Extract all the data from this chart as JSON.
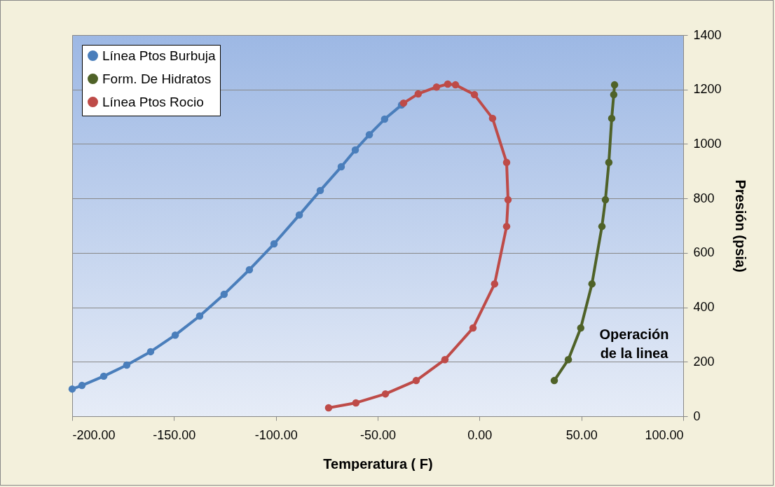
{
  "chart_data": {
    "type": "line",
    "xlabel": "Temperatura ( F)",
    "ylabel": "Presión (psia)",
    "xlim": [
      -200,
      100
    ],
    "xticks": [
      {
        "value": -200,
        "label": "-200.00"
      },
      {
        "value": -150,
        "label": "-150.00"
      },
      {
        "value": -100,
        "label": "-100.00"
      },
      {
        "value": -50,
        "label": "-50.00"
      },
      {
        "value": 0,
        "label": "0.00"
      },
      {
        "value": 50,
        "label": "50.00"
      },
      {
        "value": 100,
        "label": "100.00"
      }
    ],
    "ylim": [
      0,
      1400
    ],
    "yticks": [
      0,
      200,
      400,
      600,
      800,
      1000,
      1200,
      1400
    ],
    "grid": "y",
    "legend": "top left",
    "marker": "circle",
    "series": [
      {
        "name": "Línea Ptos Burbuja",
        "color": "#4a7ebb",
        "x": [
          -200,
          -195.2,
          -184.5,
          -173.2,
          -161.5,
          -149.4,
          -137.4,
          -125.4,
          -113,
          -100.9,
          -88.5,
          -78.2,
          -67.9,
          -61,
          -54.1,
          -46.6,
          -38.3
        ],
        "values": [
          100,
          113,
          147,
          188,
          237,
          298,
          368,
          448,
          538,
          633,
          739,
          829,
          916,
          978,
          1034,
          1091,
          1143
        ]
      },
      {
        "name": "Form. De Hidratos",
        "color": "#4f6228",
        "x": [
          36.7,
          43.6,
          49.7,
          55.2,
          60.1,
          61.8,
          63.5,
          64.9,
          65.9,
          66.3
        ],
        "values": [
          131,
          208,
          324,
          486,
          697,
          795,
          932,
          1094,
          1181,
          1217
        ]
      },
      {
        "name": "Línea Ptos Rocio",
        "color": "#be4b48",
        "x": [
          -74.1,
          -60.7,
          -46.2,
          -31.1,
          -17,
          -3.2,
          7.4,
          13.3,
          14,
          13.3,
          6.4,
          -2.5,
          -11.8,
          -15.6,
          -21.1,
          -30.1,
          -37.3
        ],
        "values": [
          31,
          49,
          82,
          131,
          208,
          324,
          486,
          697,
          795,
          932,
          1094,
          1181,
          1217,
          1220,
          1209,
          1184,
          1150
        ]
      }
    ],
    "annotations": [
      "Operación\nde la linea"
    ]
  }
}
